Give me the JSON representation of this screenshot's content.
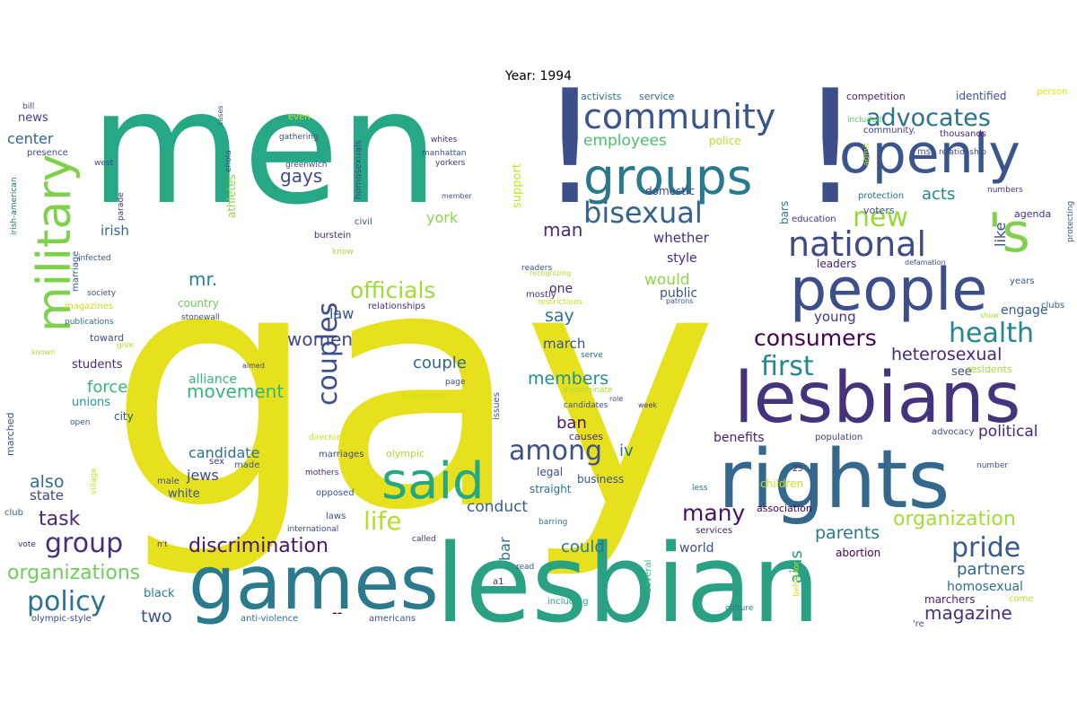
{
  "title": "Year: 1994",
  "palette": {
    "yellow": "#e6e11c",
    "yellow2": "#c6dd2b",
    "lime": "#7fd04a",
    "green": "#4dc26a",
    "green2": "#24a884",
    "teal": "#2a8e8c",
    "teal2": "#25818e",
    "blue": "#3a6a8b",
    "blue2": "#3c4f8a",
    "indigo": "#443782",
    "purple": "#471c63"
  },
  "words": [
    {
      "text": "men",
      "color": "#26a884",
      "rotate": false
    },
    {
      "text": "gay",
      "color": "#e6e11c",
      "rotate": false
    },
    {
      "text": "!",
      "color": "#3c4f8a",
      "rotate": false
    },
    {
      "text": "!",
      "color": "#3c4f8a",
      "rotate": false
    },
    {
      "text": "lesbian",
      "color": "#2ba183",
      "rotate": false
    },
    {
      "text": "games",
      "color": "#2a7a8e",
      "rotate": false
    },
    {
      "text": "rights",
      "color": "#35688d",
      "rotate": false
    },
    {
      "text": "lesbians",
      "color": "#46337e",
      "rotate": false
    },
    {
      "text": "people",
      "color": "#3c4f8a",
      "rotate": false
    },
    {
      "text": "openly",
      "color": "#3a548c",
      "rotate": false
    },
    {
      "text": "groups",
      "color": "#2a788e",
      "rotate": false
    },
    {
      "text": "military",
      "color": "#7fd04a",
      "rotate": true
    },
    {
      "text": "'s",
      "color": "#7fd04a",
      "rotate": false
    },
    {
      "text": "said",
      "color": "#24a884",
      "rotate": false
    },
    {
      "text": "community",
      "color": "#3a548c",
      "rotate": false
    },
    {
      "text": "national",
      "color": "#3f4a8a",
      "rotate": false
    },
    {
      "text": "bisexual",
      "color": "#33638d",
      "rotate": false
    },
    {
      "text": "advocates",
      "color": "#2d718e",
      "rotate": false
    },
    {
      "text": "new",
      "color": "#98d83e",
      "rotate": false
    },
    {
      "text": "couples",
      "color": "#3c4f8a",
      "rotate": true
    },
    {
      "text": "group",
      "color": "#472f7d",
      "rotate": false
    },
    {
      "text": "policy",
      "color": "#2c728e",
      "rotate": false
    },
    {
      "text": "life",
      "color": "#b5de2b",
      "rotate": false
    },
    {
      "text": "officials",
      "color": "#a0da39",
      "rotate": false
    },
    {
      "text": "health",
      "color": "#24868e",
      "rotate": false
    },
    {
      "text": "first",
      "color": "#23888e",
      "rotate": false
    },
    {
      "text": "among",
      "color": "#3b528b",
      "rotate": false
    },
    {
      "text": "pride",
      "color": "#38598c",
      "rotate": false
    },
    {
      "text": "consumers",
      "color": "#440154",
      "rotate": false
    },
    {
      "text": "many",
      "color": "#471164",
      "rotate": false
    },
    {
      "text": "organization",
      "color": "#a5db36",
      "rotate": false
    },
    {
      "text": "discrimination",
      "color": "#481769",
      "rotate": false
    },
    {
      "text": "organizations",
      "color": "#6ece58",
      "rotate": false
    },
    {
      "text": "movement",
      "color": "#35b779",
      "rotate": false
    },
    {
      "text": "women",
      "color": "#3e4989",
      "rotate": false
    },
    {
      "text": "man",
      "color": "#472c7a",
      "rotate": false
    },
    {
      "text": "gays",
      "color": "#3e4a89",
      "rotate": false
    },
    {
      "text": "mr.",
      "color": "#26828e",
      "rotate": false
    },
    {
      "text": "task",
      "color": "#472c7a",
      "rotate": false
    },
    {
      "text": "also",
      "color": "#2f6c8e",
      "rotate": false
    },
    {
      "text": "two",
      "color": "#3b528b",
      "rotate": false
    },
    {
      "text": "magazine",
      "color": "#46327e",
      "rotate": false
    },
    {
      "text": "members",
      "color": "#21918c",
      "rotate": false
    },
    {
      "text": "ban",
      "color": "#481769",
      "rotate": false
    },
    {
      "text": "employees",
      "color": "#4ac16d",
      "rotate": false
    },
    {
      "text": "say",
      "color": "#2c738e",
      "rotate": false
    },
    {
      "text": "partners",
      "color": "#33638d",
      "rotate": false
    },
    {
      "text": "parents",
      "color": "#29798e",
      "rotate": false
    },
    {
      "text": "heterosexual",
      "color": "#482677",
      "rotate": false
    },
    {
      "text": "couple",
      "color": "#306a8e",
      "rotate": false
    },
    {
      "text": "conduct",
      "color": "#34608d",
      "rotate": false
    },
    {
      "text": "would",
      "color": "#8fd744",
      "rotate": false
    },
    {
      "text": "could",
      "color": "#2a788e",
      "rotate": false
    },
    {
      "text": "force",
      "color": "#35b779",
      "rotate": false
    },
    {
      "text": "political",
      "color": "#482878",
      "rotate": false
    },
    {
      "text": "aids",
      "color": "#1e9b8a",
      "rotate": true
    },
    {
      "text": "acts",
      "color": "#24868e",
      "rotate": false
    },
    {
      "text": "like",
      "color": "#3a548c",
      "rotate": true
    },
    {
      "text": "iv",
      "color": "#2c728e",
      "rotate": false
    },
    {
      "text": "law",
      "color": "#3b518b",
      "rotate": false
    },
    {
      "text": "york",
      "color": "#8bd646",
      "rotate": false
    },
    {
      "text": "candidate",
      "color": "#2c728e",
      "rotate": false
    },
    {
      "text": "jews",
      "color": "#3e4989",
      "rotate": false
    },
    {
      "text": "center",
      "color": "#31668e",
      "rotate": false
    },
    {
      "text": "state",
      "color": "#414487",
      "rotate": false
    },
    {
      "text": "irish",
      "color": "#33638d",
      "rotate": false
    },
    {
      "text": "march",
      "color": "#3b528b",
      "rotate": false
    },
    {
      "text": "young",
      "color": "#46337e",
      "rotate": false
    },
    {
      "text": "whether",
      "color": "#472d7b",
      "rotate": false
    },
    {
      "text": "alliance",
      "color": "#35b779",
      "rotate": false
    },
    {
      "text": "homosexual",
      "color": "#2e6e8e",
      "rotate": false
    },
    {
      "text": "bar",
      "color": "#2c738e",
      "rotate": true
    },
    {
      "text": "--",
      "color": "#440154",
      "rotate": false
    },
    {
      "text": "world",
      "color": "#3b528b",
      "rotate": false
    },
    {
      "text": "benefits",
      "color": "#482071",
      "rotate": false
    },
    {
      "text": "engage",
      "color": "#38598c",
      "rotate": false
    },
    {
      "text": "style",
      "color": "#472a7a",
      "rotate": false
    },
    {
      "text": "public",
      "color": "#3b528b",
      "rotate": false
    },
    {
      "text": "one",
      "color": "#482576",
      "rotate": false
    },
    {
      "text": "students",
      "color": "#482878",
      "rotate": false
    },
    {
      "text": "unions",
      "color": "#1f9e89",
      "rotate": false
    },
    {
      "text": "news",
      "color": "#414487",
      "rotate": false
    },
    {
      "text": "black",
      "color": "#287c8e",
      "rotate": false
    },
    {
      "text": "white",
      "color": "#38588c",
      "rotate": false
    },
    {
      "text": "support",
      "color": "#c8e020",
      "rotate": true
    },
    {
      "text": "country",
      "color": "#6ccd5a",
      "rotate": false
    },
    {
      "text": "leaders",
      "color": "#482173",
      "rotate": false
    },
    {
      "text": "abortion",
      "color": "#440154",
      "rotate": false
    },
    {
      "text": "marchers",
      "color": "#482475",
      "rotate": false
    },
    {
      "text": "athletes",
      "color": "#8fd744",
      "rotate": true
    },
    {
      "text": "police",
      "color": "#b8de29",
      "rotate": false
    },
    {
      "text": "domestic",
      "color": "#3e4989",
      "rotate": false
    },
    {
      "text": "competition",
      "color": "#481c6e",
      "rotate": false
    },
    {
      "text": "identified",
      "color": "#3b528b",
      "rotate": false
    },
    {
      "text": "activists",
      "color": "#2c728e",
      "rotate": false
    },
    {
      "text": "service",
      "color": "#2e6d8e",
      "rotate": false
    },
    {
      "text": "community.",
      "color": "#443a83",
      "rotate": false
    },
    {
      "text": "thousands",
      "color": "#482979",
      "rotate": false
    },
    {
      "text": "ms.",
      "color": "#3b528b",
      "rotate": false
    },
    {
      "text": "relationship",
      "color": "#3e4989",
      "rotate": false
    },
    {
      "text": "agenda",
      "color": "#46307e",
      "rotate": false
    },
    {
      "text": "voters",
      "color": "#3a548c",
      "rotate": false
    },
    {
      "text": "protection",
      "color": "#2e6e8e",
      "rotate": false
    },
    {
      "text": "numbers",
      "color": "#443983",
      "rotate": false
    },
    {
      "text": "education",
      "color": "#46327e",
      "rotate": false
    },
    {
      "text": "bars",
      "color": "#2a788e",
      "rotate": true
    },
    {
      "text": "included",
      "color": "#5ec962",
      "rotate": false
    },
    {
      "text": "admit",
      "color": "#b5de2b",
      "rotate": true
    },
    {
      "text": "person",
      "color": "#d8e219",
      "rotate": false
    },
    {
      "text": "protecting",
      "color": "#3a548c",
      "rotate": true
    },
    {
      "text": "clubs",
      "color": "#35608d",
      "rotate": false
    },
    {
      "text": "years",
      "color": "#3a548c",
      "rotate": false
    },
    {
      "text": "show",
      "color": "#aadc32",
      "rotate": false
    },
    {
      "text": "defamation",
      "color": "#3b528b",
      "rotate": false
    },
    {
      "text": "see",
      "color": "#3e4989",
      "rotate": false
    },
    {
      "text": "residents",
      "color": "#a5db36",
      "rotate": false
    },
    {
      "text": "advocacy",
      "color": "#3e4a89",
      "rotate": false
    },
    {
      "text": "population",
      "color": "#443983",
      "rotate": false
    },
    {
      "text": "number",
      "color": "#3b518b",
      "rotate": false
    },
    {
      "text": "fund",
      "color": "#2a788e",
      "rotate": true
    },
    {
      "text": "come",
      "color": "#b5de2b",
      "rotate": false
    },
    {
      "text": "'re",
      "color": "#38598c",
      "rotate": false
    },
    {
      "text": "culture",
      "color": "#287d8e",
      "rotate": false
    },
    {
      "text": "behavior",
      "color": "#d0e11c",
      "rotate": true
    },
    {
      "text": "25",
      "color": "#482475",
      "rotate": false
    },
    {
      "text": "children",
      "color": "#c8e020",
      "rotate": false
    },
    {
      "text": "less",
      "color": "#2e6e8e",
      "rotate": false
    },
    {
      "text": "association",
      "color": "#440154",
      "rotate": false
    },
    {
      "text": "services",
      "color": "#482173",
      "rotate": false
    },
    {
      "text": "barring",
      "color": "#2a788e",
      "rotate": false
    },
    {
      "text": "several",
      "color": "#35b779",
      "rotate": true
    },
    {
      "text": "including",
      "color": "#22a884",
      "rotate": false
    },
    {
      "text": "read",
      "color": "#3a548c",
      "rotate": false
    },
    {
      "text": "a1",
      "color": "#482475",
      "rotate": false
    },
    {
      "text": "called",
      "color": "#46327e",
      "rotate": false
    },
    {
      "text": "n't",
      "color": "#46337e",
      "rotate": false
    },
    {
      "text": "international",
      "color": "#3e4989",
      "rotate": false
    },
    {
      "text": "laws",
      "color": "#3b528b",
      "rotate": false
    },
    {
      "text": "americans",
      "color": "#3a548c",
      "rotate": false
    },
    {
      "text": "anti-violence",
      "color": "#2e6d8e",
      "rotate": false
    },
    {
      "text": "olympic-style",
      "color": "#3f4788",
      "rotate": false
    },
    {
      "text": "vote",
      "color": "#482878",
      "rotate": false
    },
    {
      "text": "club",
      "color": "#33638d",
      "rotate": false
    },
    {
      "text": "village",
      "color": "#c8e020",
      "rotate": true
    },
    {
      "text": "marched",
      "color": "#3a548c",
      "rotate": true
    },
    {
      "text": "open",
      "color": "#3b528b",
      "rotate": false
    },
    {
      "text": "city",
      "color": "#3b528b",
      "rotate": false
    },
    {
      "text": "known",
      "color": "#aadc32",
      "rotate": false
    },
    {
      "text": "give",
      "color": "#b5de2b",
      "rotate": false
    },
    {
      "text": "toward",
      "color": "#3b528b",
      "rotate": false
    },
    {
      "text": "publications",
      "color": "#2e6d8e",
      "rotate": false
    },
    {
      "text": "magazines",
      "color": "#c8e020",
      "rotate": false
    },
    {
      "text": "society",
      "color": "#3b528b",
      "rotate": false
    },
    {
      "text": "infected",
      "color": "#3a548c",
      "rotate": false
    },
    {
      "text": "marriage",
      "color": "#3a548c",
      "rotate": true
    },
    {
      "text": "irish-american",
      "color": "#2e6d8e",
      "rotate": true
    },
    {
      "text": "presence",
      "color": "#3e4a89",
      "rotate": false
    },
    {
      "text": "bill",
      "color": "#3e4989",
      "rotate": false
    },
    {
      "text": "cases",
      "color": "#3a548c",
      "rotate": true
    },
    {
      "text": "even",
      "color": "#c8e020",
      "rotate": false
    },
    {
      "text": "gathering",
      "color": "#3b528b",
      "rotate": false
    },
    {
      "text": "enola",
      "color": "#3a548c",
      "rotate": true
    },
    {
      "text": "west",
      "color": "#3e4989",
      "rotate": false
    },
    {
      "text": "parade",
      "color": "#46327e",
      "rotate": true
    },
    {
      "text": "greenwich",
      "color": "#3b528b",
      "rotate": false
    },
    {
      "text": "homosexuals",
      "color": "#3e4989",
      "rotate": true
    },
    {
      "text": "whites",
      "color": "#46327e",
      "rotate": false
    },
    {
      "text": "manhattan",
      "color": "#3b528b",
      "rotate": false
    },
    {
      "text": "yorkers",
      "color": "#46327e",
      "rotate": false
    },
    {
      "text": "civil",
      "color": "#3b528b",
      "rotate": false
    },
    {
      "text": "member",
      "color": "#3a548c",
      "rotate": false
    },
    {
      "text": "burstein",
      "color": "#482878",
      "rotate": false
    },
    {
      "text": "know",
      "color": "#aadc32",
      "rotate": false
    },
    {
      "text": "readers",
      "color": "#3a548c",
      "rotate": false
    },
    {
      "text": "recognizing",
      "color": "#aadc32",
      "rotate": false
    },
    {
      "text": "mostly",
      "color": "#46327e",
      "rotate": false
    },
    {
      "text": "restrictions",
      "color": "#c8e020",
      "rotate": false
    },
    {
      "text": "patrons",
      "color": "#3b528b",
      "rotate": false
    },
    {
      "text": "relationships",
      "color": "#46327e",
      "rotate": false
    },
    {
      "text": "stonewall",
      "color": "#3b528b",
      "rotate": false
    },
    {
      "text": "serve",
      "color": "#2e6d8e",
      "rotate": false
    },
    {
      "text": "aimed",
      "color": "#3e4989",
      "rotate": false
    },
    {
      "text": "teen-agers",
      "color": "#c8e020",
      "rotate": false
    },
    {
      "text": "page",
      "color": "#3e4989",
      "rotate": false
    },
    {
      "text": "discriminate",
      "color": "#aadc32",
      "rotate": false
    },
    {
      "text": "issues",
      "color": "#3b528b",
      "rotate": true
    },
    {
      "text": "candidates",
      "color": "#3a548c",
      "rotate": false
    },
    {
      "text": "role",
      "color": "#3e4989",
      "rotate": false
    },
    {
      "text": "week",
      "color": "#46327e",
      "rotate": false
    },
    {
      "text": "causes",
      "color": "#482878",
      "rotate": false
    },
    {
      "text": "director",
      "color": "#c8e020",
      "rotate": false
    },
    {
      "text": "marriages",
      "color": "#3e4989",
      "rotate": false
    },
    {
      "text": "made",
      "color": "#3b528b",
      "rotate": false
    },
    {
      "text": "sex",
      "color": "#46327e",
      "rotate": false
    },
    {
      "text": "male",
      "color": "#3a548c",
      "rotate": false
    },
    {
      "text": "mothers",
      "color": "#482878",
      "rotate": false
    },
    {
      "text": "opposed",
      "color": "#3b528b",
      "rotate": false
    },
    {
      "text": "olympic",
      "color": "#aadc32",
      "rotate": false
    },
    {
      "text": "legal",
      "color": "#3e4989",
      "rotate": false
    },
    {
      "text": "straight",
      "color": "#2e6d8e",
      "rotate": false
    },
    {
      "text": "business",
      "color": "#3b528b",
      "rotate": false
    }
  ]
}
